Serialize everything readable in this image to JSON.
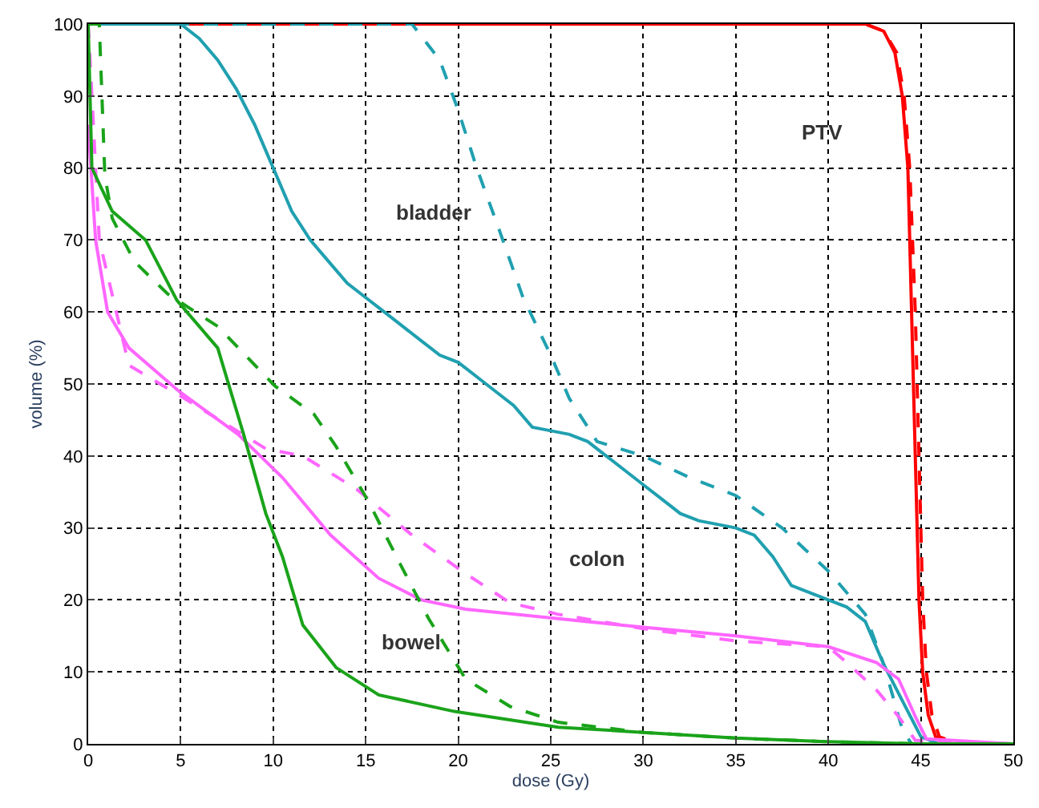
{
  "chart_data": {
    "type": "line",
    "xlabel": "dose (Gy)",
    "ylabel": "volume (%)",
    "xlim": [
      0,
      50
    ],
    "ylim": [
      0,
      100
    ],
    "xticks": [
      0,
      5,
      10,
      15,
      20,
      25,
      30,
      35,
      40,
      45,
      50
    ],
    "yticks": [
      0,
      10,
      20,
      30,
      40,
      50,
      60,
      70,
      80,
      90,
      100
    ],
    "grid": true,
    "marker": "none",
    "series": [
      {
        "color": "#ff0000",
        "line_style": "solid",
        "x": [
          0,
          42,
          43,
          43.6,
          44,
          44.3,
          44.5,
          44.7,
          44.9,
          45.1,
          45.4,
          45.8,
          46.5,
          50
        ],
        "values": [
          100,
          100,
          99,
          96,
          90,
          80,
          60,
          40,
          20,
          10,
          4,
          1,
          0,
          0
        ]
      },
      {
        "color": "#ff0000",
        "line_style": "dashed",
        "x": [
          0,
          42,
          43,
          43.7,
          44.1,
          44.4,
          44.7,
          44.9,
          45.1,
          45.3,
          45.6,
          46,
          47,
          50
        ],
        "values": [
          100,
          100,
          99,
          96,
          90,
          80,
          60,
          40,
          20,
          10,
          4,
          1,
          0,
          0
        ]
      },
      {
        "color": "#20a0b0",
        "line_style": "solid",
        "x": [
          0,
          5,
          6,
          7,
          8,
          9,
          10,
          11,
          12,
          13,
          14,
          15,
          16,
          17,
          18,
          19,
          20,
          21,
          22,
          23,
          24,
          25,
          26,
          27,
          28,
          29,
          30,
          31,
          32,
          33,
          34,
          35,
          36,
          37,
          38,
          39,
          40,
          41,
          42,
          43,
          44,
          45,
          45.5,
          46,
          50
        ],
        "values": [
          100,
          100,
          98,
          95,
          91,
          86,
          80,
          74,
          70,
          67,
          64,
          62,
          60,
          58,
          56,
          54,
          53,
          51,
          49,
          47,
          44,
          43.5,
          43,
          42,
          40,
          38,
          36,
          34,
          32,
          31,
          30.5,
          30,
          29,
          26,
          22,
          21,
          20,
          19,
          17,
          11,
          6,
          1,
          0.5,
          0,
          0
        ]
      },
      {
        "color": "#20a0b0",
        "line_style": "dashed",
        "x": [
          0,
          17.5,
          19,
          20,
          21,
          22.2,
          23.5,
          25,
          26,
          27.5,
          30,
          32.5,
          35,
          37.5,
          40,
          42,
          43,
          44,
          44.5,
          50
        ],
        "values": [
          100,
          100,
          95,
          88,
          80,
          71.5,
          62,
          54,
          48,
          42,
          40,
          37,
          34.5,
          30,
          24,
          18,
          11,
          2,
          0,
          0
        ]
      },
      {
        "color": "#ff66ff",
        "line_style": "solid",
        "x": [
          0,
          0.4,
          1.05,
          2.2,
          4.9,
          8.1,
          10.5,
          13.1,
          15.7,
          18,
          20.4,
          25.4,
          30,
          35,
          40,
          42.6,
          43.8,
          44.7,
          45.3,
          50
        ],
        "values": [
          86,
          70,
          60,
          55,
          49,
          43,
          37,
          29,
          23,
          20,
          18.7,
          17.4,
          16.2,
          15,
          13.5,
          11.3,
          9,
          3.8,
          0.7,
          0
        ]
      },
      {
        "color": "#ff66ff",
        "line_style": "dashed",
        "x": [
          0,
          0.6,
          2.2,
          5.2,
          9.6,
          11.6,
          14.5,
          17.5,
          20.2,
          22.8,
          25.4,
          30,
          35,
          40,
          41,
          42.6,
          43.8,
          44.7,
          50
        ],
        "values": [
          100,
          70,
          52.6,
          48,
          41,
          40,
          35.4,
          29,
          24,
          19.6,
          18,
          16,
          14.3,
          13.5,
          11.3,
          7.5,
          3.8,
          0.5,
          0
        ]
      },
      {
        "color": "#1aa31a",
        "line_style": "solid",
        "x": [
          0,
          0.2,
          1.3,
          3.1,
          4.8,
          7,
          8.4,
          9.6,
          10.5,
          11.6,
          13.4,
          15.7,
          19.8,
          25.4,
          30,
          35,
          40,
          45,
          50
        ],
        "values": [
          100,
          80,
          74,
          70,
          61.6,
          55,
          43,
          32,
          26,
          16.5,
          10.6,
          6.8,
          4.5,
          2.3,
          1.6,
          0.8,
          0.3,
          0,
          0
        ]
      },
      {
        "color": "#1aa31a",
        "line_style": "dashed",
        "x": [
          0,
          0.6,
          0.9,
          1.3,
          2.5,
          4.3,
          7,
          10.1,
          12.2,
          13.4,
          15.1,
          16.9,
          18.4,
          20.4,
          22.8,
          25.4,
          30,
          35,
          40,
          45,
          50
        ],
        "values": [
          100,
          100,
          79,
          73,
          67,
          62.5,
          58,
          49.7,
          45.8,
          41.3,
          33.9,
          24.8,
          17.4,
          9,
          5.2,
          3,
          1.6,
          0.8,
          0.3,
          0,
          0
        ]
      }
    ],
    "annotations": [
      "PTV",
      "bladder",
      "colon",
      "bowel"
    ]
  }
}
